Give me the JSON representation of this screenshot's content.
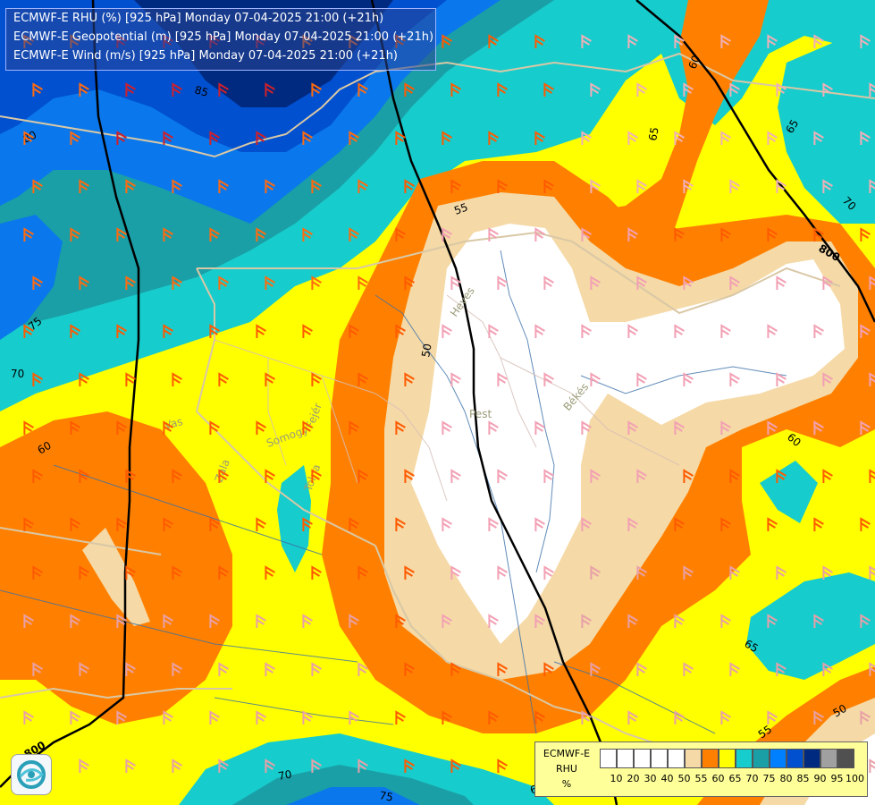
{
  "titles": [
    "ECMWF-E RHU (%) [925 hPa] Monday 07-04-2025 21:00 (+21h)",
    "ECMWF-E Geopotential (m) [925 hPa] Monday 07-04-2025 21:00 (+21h)",
    "ECMWF-E Wind (m/s) [925 hPa] Monday 07-04-2025 21:00 (+21h)"
  ],
  "legend": {
    "title_lines": [
      "ECMWF-E",
      "RHU",
      "%"
    ],
    "ticks": [
      "10",
      "20",
      "30",
      "40",
      "50",
      "55",
      "60",
      "65",
      "70",
      "75",
      "80",
      "85",
      "90",
      "95",
      "100"
    ],
    "colors": [
      "#ffffff",
      "#ffffff",
      "#ffffff",
      "#ffffff",
      "#ffffff",
      "#f5d9a6",
      "#ff8000",
      "#ffff00",
      "#17cccc",
      "#1a9fa6",
      "#0080ff",
      "#0050d0",
      "#002a80",
      "#a0a0a0",
      "#505050"
    ]
  },
  "colors": {
    "rhu_50": "#ffffff",
    "rhu_55": "#f5d9a6",
    "rhu_60": "#ff8000",
    "rhu_65": "#ffff00",
    "rhu_70": "#17cccc",
    "rhu_75": "#1a9fa6",
    "rhu_80": "#0080ff",
    "rhu_85": "#0050d0",
    "rhu_90": "#002a80",
    "geopotential_line": "#000000",
    "border_line": "#d9c8a6"
  },
  "contour_labels": [
    "85",
    "80",
    "75",
    "70",
    "60",
    "55",
    "50",
    "65",
    "60",
    "65",
    "70",
    "60",
    "65",
    "55",
    "50",
    "70",
    "75",
    "65",
    "800",
    "800"
  ],
  "place_labels": [
    "Vas",
    "Somogy",
    "Fejér",
    "Tolna",
    "Zala",
    "Pest",
    "Békés",
    "Heves"
  ],
  "logo_icon": "ecmwf-logo-icon"
}
